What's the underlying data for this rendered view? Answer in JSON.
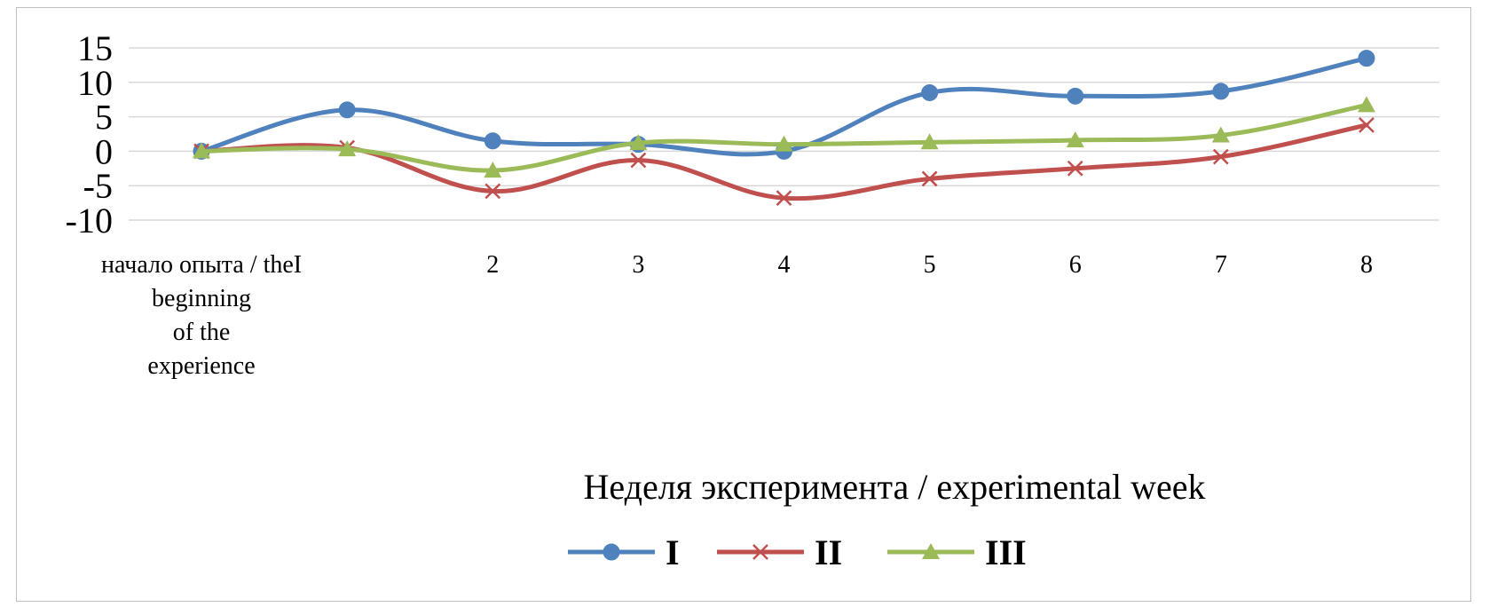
{
  "chart_data": {
    "type": "line",
    "categories": [
      "начало опыта / theI beginning of the experience",
      "",
      "2",
      "3",
      "4",
      "5",
      "6",
      "7",
      "8"
    ],
    "category_label_lines": [
      [
        "начало опыта / theI",
        "beginning",
        "of the",
        "experience"
      ],
      [],
      [
        "2"
      ],
      [
        "3"
      ],
      [
        "4"
      ],
      [
        "5"
      ],
      [
        "6"
      ],
      [
        "7"
      ],
      [
        "8"
      ]
    ],
    "series": [
      {
        "name": "I",
        "values": [
          0,
          6,
          1.5,
          1,
          0,
          8.5,
          8,
          8.7,
          13.5
        ],
        "color": "#4f81bd",
        "marker": "circle"
      },
      {
        "name": "II",
        "values": [
          0,
          0.5,
          -5.8,
          -1.3,
          -6.8,
          -4,
          -2.5,
          -0.8,
          3.8
        ],
        "color": "#c0504d",
        "marker": "x"
      },
      {
        "name": "III",
        "values": [
          0,
          0.3,
          -2.8,
          1.2,
          1,
          1.3,
          1.6,
          2.3,
          6.7
        ],
        "color": "#9bbb59",
        "marker": "triangle"
      }
    ],
    "yticks": [
      15,
      10,
      5,
      0,
      -5,
      -10
    ],
    "ylim": [
      -10,
      15
    ],
    "xlabel": "Неделя эксперимента / experimental week",
    "ylabel": "",
    "title": "",
    "grid": true,
    "legend_position": "bottom"
  }
}
